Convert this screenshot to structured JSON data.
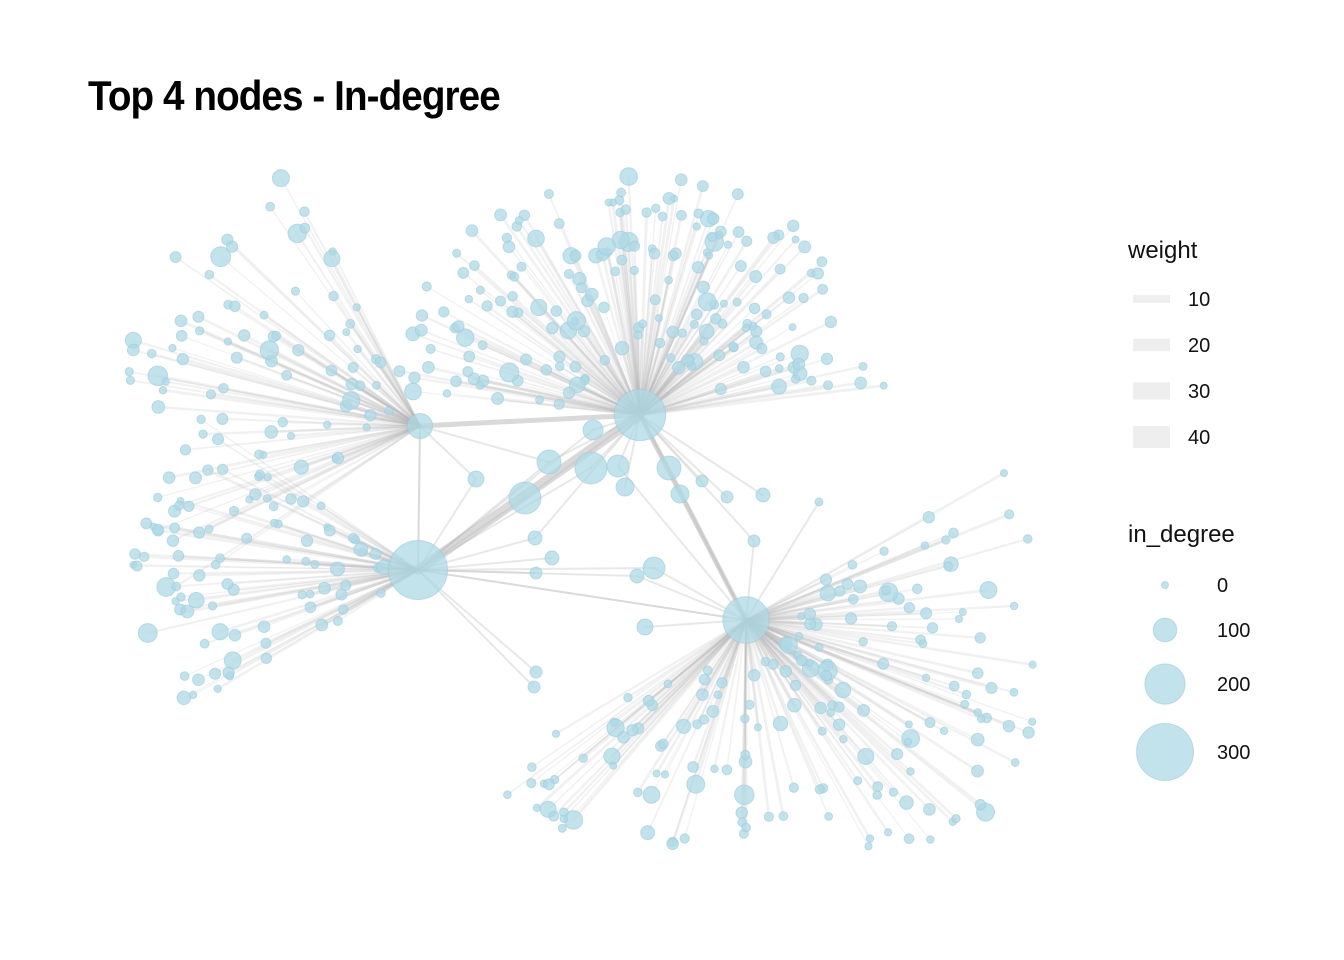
{
  "title": "Top 4 nodes - In-degree",
  "colors": {
    "node": "#add8e6",
    "node_stroke": "#9ccbdc",
    "edge": "#b4b4b4",
    "legend_line": "#eeeeee"
  },
  "network": {
    "hubs": [
      {
        "id": "hub-a",
        "in_degree": 330
      },
      {
        "id": "hub-b",
        "in_degree": 240
      },
      {
        "id": "hub-c",
        "in_degree": 190
      },
      {
        "id": "hub-d",
        "in_degree": 40
      }
    ]
  },
  "legend": {
    "weight": {
      "title": "weight",
      "items": [
        {
          "label": "10",
          "value": 10
        },
        {
          "label": "20",
          "value": 20
        },
        {
          "label": "30",
          "value": 30
        },
        {
          "label": "40",
          "value": 40
        }
      ]
    },
    "in_degree": {
      "title": "in_degree",
      "items": [
        {
          "label": "0",
          "value": 0
        },
        {
          "label": "100",
          "value": 100
        },
        {
          "label": "200",
          "value": 200
        },
        {
          "label": "300",
          "value": 300
        }
      ]
    }
  }
}
